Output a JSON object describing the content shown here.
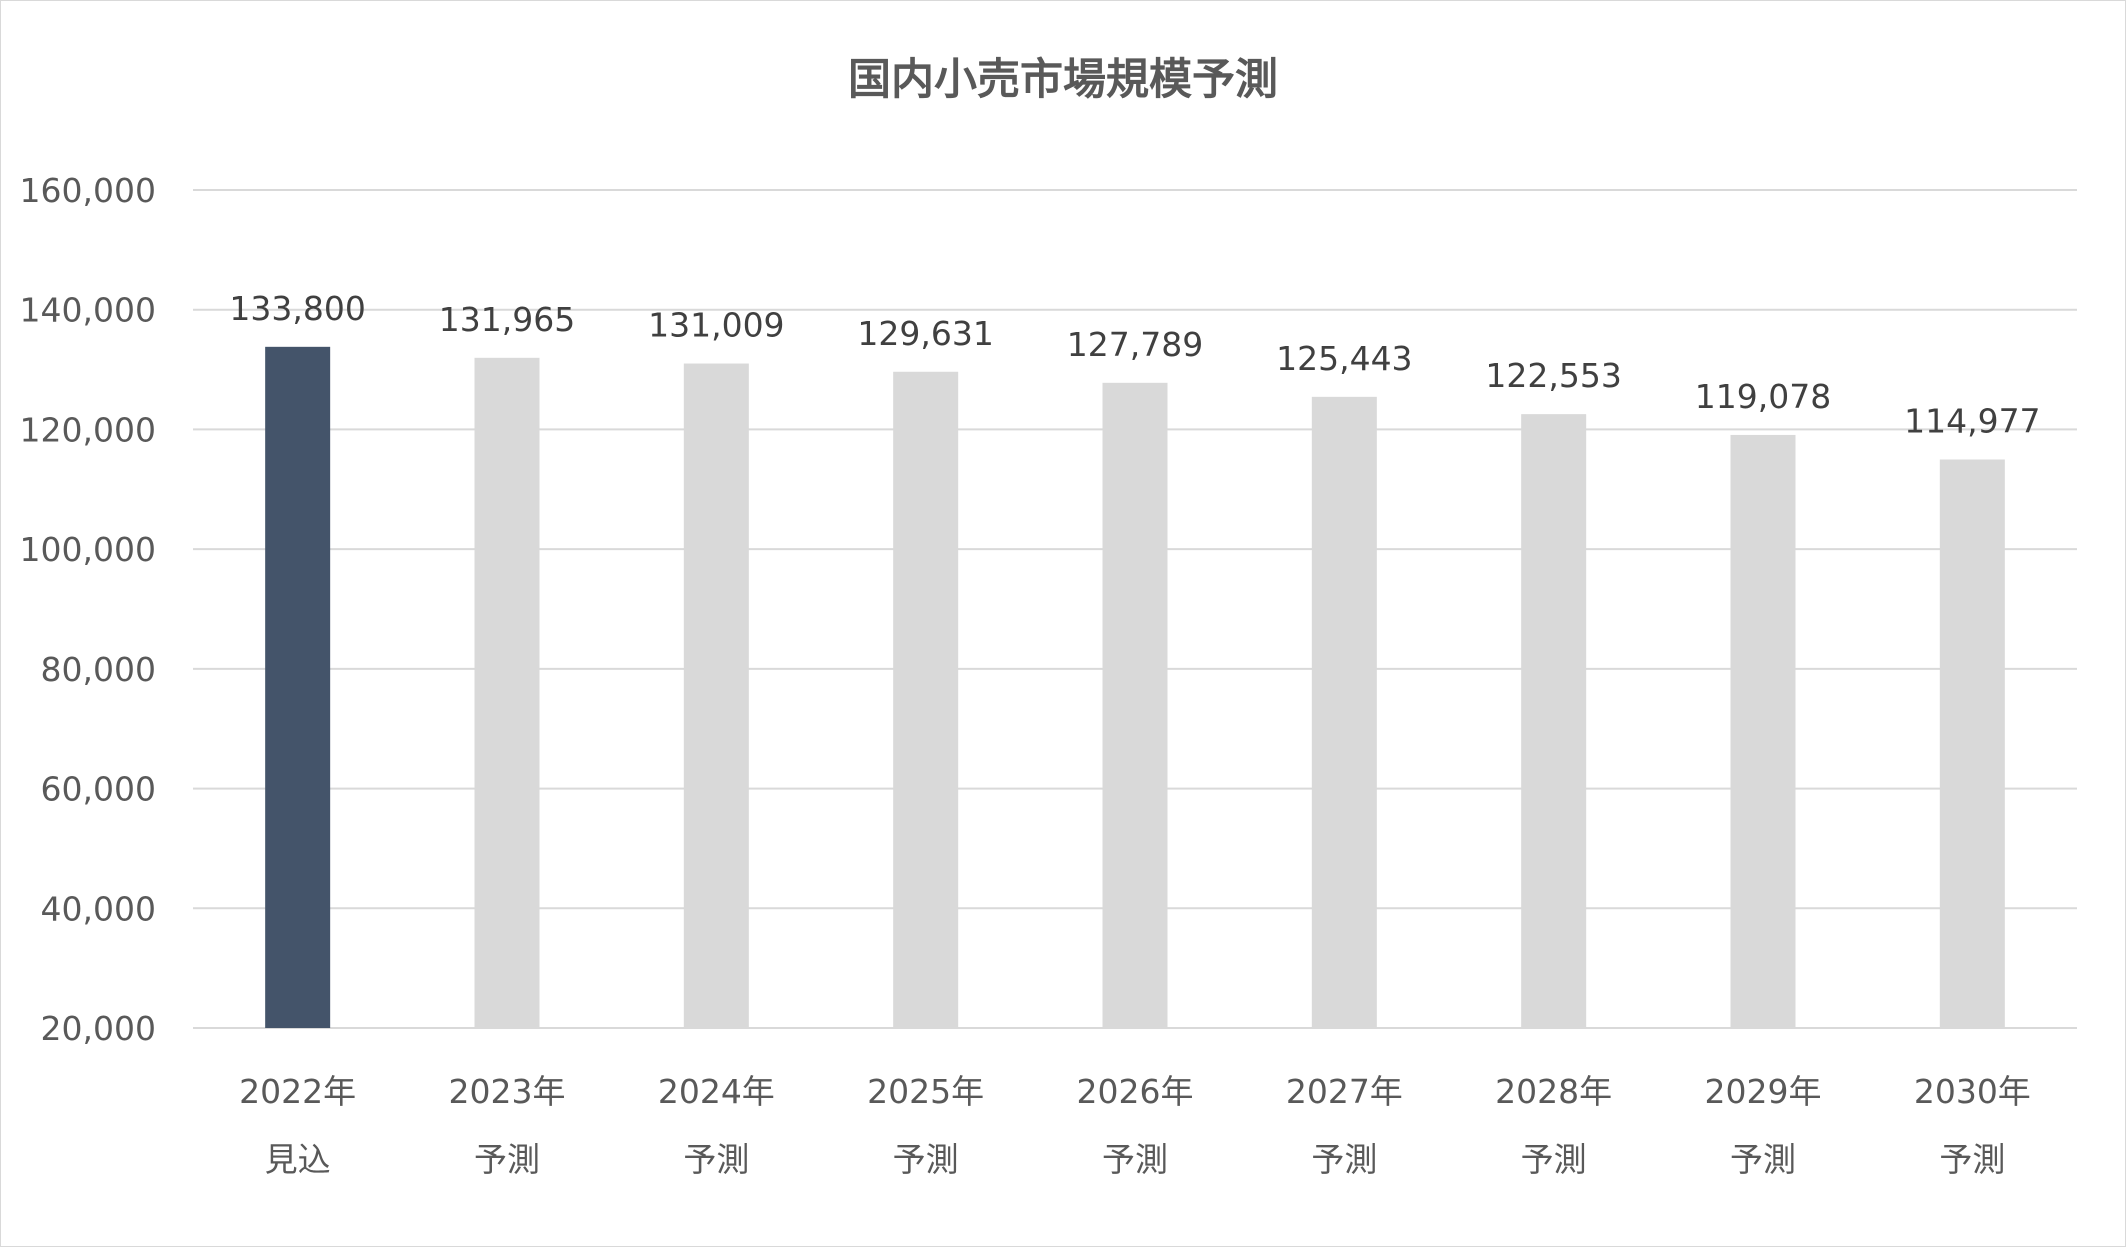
{
  "chart_data": {
    "type": "bar",
    "title": "国内小売市場規模予測",
    "xlabel": "",
    "ylabel": "",
    "ylim": [
      20000,
      160000
    ],
    "yticks": [
      20000,
      40000,
      60000,
      80000,
      100000,
      120000,
      140000,
      160000
    ],
    "ytick_labels": [
      "20,000",
      "40,000",
      "60,000",
      "80,000",
      "100,000",
      "120,000",
      "140,000",
      "160,000"
    ],
    "categories": [
      [
        "2022年",
        "見込"
      ],
      [
        "2023年",
        "予測"
      ],
      [
        "2024年",
        "予測"
      ],
      [
        "2025年",
        "予測"
      ],
      [
        "2026年",
        "予測"
      ],
      [
        "2027年",
        "予測"
      ],
      [
        "2028年",
        "予測"
      ],
      [
        "2029年",
        "予測"
      ],
      [
        "2030年",
        "予測"
      ]
    ],
    "values": [
      133800,
      131965,
      131009,
      129631,
      127789,
      125443,
      122553,
      119078,
      114977
    ],
    "value_labels": [
      "133,800",
      "131,965",
      "131,009",
      "129,631",
      "127,789",
      "125,443",
      "122,553",
      "119,078",
      "114,977"
    ],
    "bar_colors": [
      "#44546a",
      "#d9d9d9",
      "#d9d9d9",
      "#d9d9d9",
      "#d9d9d9",
      "#d9d9d9",
      "#d9d9d9",
      "#d9d9d9",
      "#d9d9d9"
    ],
    "grid": true,
    "legend": "none"
  }
}
